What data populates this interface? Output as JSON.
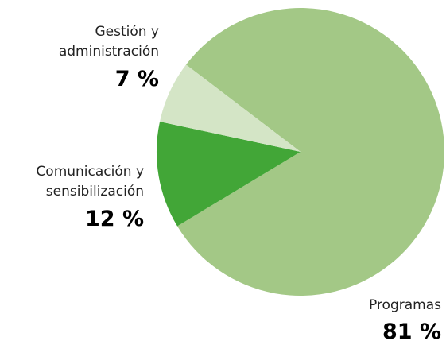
{
  "chart_data": {
    "type": "pie",
    "categories": [
      "Programas",
      "Comunicación y sensibilización",
      "Gestión y administración"
    ],
    "values": [
      81,
      12,
      7
    ],
    "value_labels": [
      "81 %",
      "12 %",
      "7 %"
    ],
    "colors": [
      "#a3c886",
      "#42a637",
      "#d4e5c6"
    ]
  }
}
